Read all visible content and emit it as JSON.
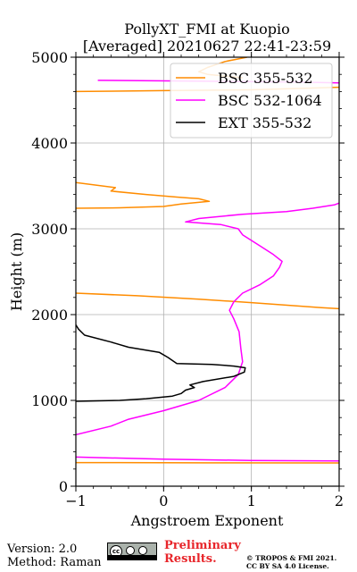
{
  "chart_data": {
    "type": "line",
    "title_line1": "PollyXT_FMI at Kuopio",
    "title_line2": "[Averaged] 20210627 22:41-23:59",
    "xlabel": "Angstroem Exponent",
    "ylabel": "Height (m)",
    "xlim": [
      -1,
      2
    ],
    "ylim": [
      0,
      5000
    ],
    "xticks": [
      -1,
      0,
      1,
      2
    ],
    "xtick_labels": [
      "−1",
      "0",
      "1",
      "2"
    ],
    "yticks": [
      0,
      1000,
      2000,
      3000,
      4000,
      5000
    ],
    "ytick_labels": [
      "0",
      "1000",
      "2000",
      "3000",
      "4000",
      "5000"
    ],
    "grid": true,
    "legend_position": "top-right",
    "series": [
      {
        "name": "BSC 355-532",
        "color": "#ff8c00",
        "segments": [
          [
            [
              3.0,
              270
            ],
            [
              0.5,
              272
            ],
            [
              -0.5,
              275
            ],
            [
              -1.0,
              275
            ]
          ],
          [
            [
              3.0,
              2010
            ],
            [
              1.8,
              2080
            ],
            [
              1.0,
              2140
            ],
            [
              0.4,
              2180
            ],
            [
              -0.3,
              2220
            ],
            [
              -1.0,
              2250
            ]
          ],
          [
            [
              -1.0,
              3240
            ],
            [
              -0.5,
              3245
            ],
            [
              0.0,
              3260
            ],
            [
              0.2,
              3290
            ],
            [
              0.52,
              3320
            ],
            [
              0.4,
              3350
            ],
            [
              0.15,
              3370
            ],
            [
              -0.2,
              3400
            ],
            [
              -0.6,
              3440
            ],
            [
              -0.55,
              3480
            ],
            [
              -1.0,
              3540
            ]
          ],
          [
            [
              -1.0,
              4600
            ],
            [
              0.0,
              4610
            ],
            [
              1.0,
              4620
            ],
            [
              2.0,
              4650
            ],
            [
              3.0,
              4660
            ]
          ],
          [
            [
              0.9,
              4760
            ],
            [
              0.5,
              4800
            ],
            [
              0.4,
              4830
            ],
            [
              0.5,
              4880
            ],
            [
              0.7,
              4950
            ],
            [
              0.95,
              5000
            ]
          ]
        ]
      },
      {
        "name": "BSC 532-1064",
        "color": "#ff00ff",
        "segments": [
          [
            [
              3.0,
              290
            ],
            [
              1.0,
              300
            ],
            [
              0.0,
              315
            ],
            [
              -1.0,
              340
            ]
          ],
          [
            [
              -1.0,
              600
            ],
            [
              -0.6,
              700
            ],
            [
              -0.4,
              780
            ],
            [
              0.0,
              880
            ],
            [
              0.4,
              1000
            ],
            [
              0.7,
              1150
            ],
            [
              0.85,
              1300
            ],
            [
              0.9,
              1450
            ],
            [
              0.88,
              1600
            ],
            [
              0.86,
              1800
            ],
            [
              0.8,
              1950
            ],
            [
              0.75,
              2050
            ],
            [
              0.8,
              2150
            ],
            [
              0.9,
              2250
            ],
            [
              1.1,
              2350
            ],
            [
              1.25,
              2450
            ],
            [
              1.32,
              2550
            ],
            [
              1.35,
              2620
            ],
            [
              1.25,
              2700
            ],
            [
              1.1,
              2800
            ],
            [
              0.9,
              2930
            ],
            [
              0.85,
              3000
            ],
            [
              0.65,
              3050
            ],
            [
              0.25,
              3080
            ],
            [
              0.4,
              3120
            ],
            [
              0.9,
              3170
            ],
            [
              1.4,
              3200
            ],
            [
              1.7,
              3240
            ],
            [
              1.95,
              3280
            ],
            [
              2.0,
              3300
            ],
            [
              3.0,
              3400
            ]
          ],
          [
            [
              -0.75,
              4730
            ],
            [
              0.5,
              4720
            ],
            [
              1.5,
              4710
            ],
            [
              2.0,
              4700
            ],
            [
              3.0,
              4700
            ]
          ]
        ]
      },
      {
        "name": "EXT 355-532",
        "color": "#000000",
        "segments": [
          [
            [
              -1.0,
              990
            ],
            [
              -0.5,
              1000
            ],
            [
              -0.2,
              1020
            ],
            [
              0.1,
              1050
            ],
            [
              0.2,
              1080
            ],
            [
              0.25,
              1120
            ],
            [
              0.35,
              1150
            ],
            [
              0.3,
              1180
            ],
            [
              0.45,
              1220
            ],
            [
              0.8,
              1280
            ],
            [
              0.92,
              1330
            ],
            [
              0.93,
              1380
            ],
            [
              0.8,
              1400
            ],
            [
              0.55,
              1420
            ],
            [
              0.15,
              1430
            ],
            [
              0.05,
              1500
            ],
            [
              -0.05,
              1560
            ],
            [
              -0.4,
              1620
            ],
            [
              -0.6,
              1680
            ],
            [
              -0.9,
              1760
            ],
            [
              -0.97,
              1830
            ],
            [
              -1.0,
              1880
            ]
          ]
        ]
      }
    ]
  },
  "footer": {
    "version": "Version: 2.0",
    "method": "Method: Raman",
    "preliminary_line1": "Preliminary",
    "preliminary_line2": "Results.",
    "copyright_line1": "© TROPOS & FMI 2021.",
    "copyright_line2": "CC BY SA 4.0 License."
  }
}
